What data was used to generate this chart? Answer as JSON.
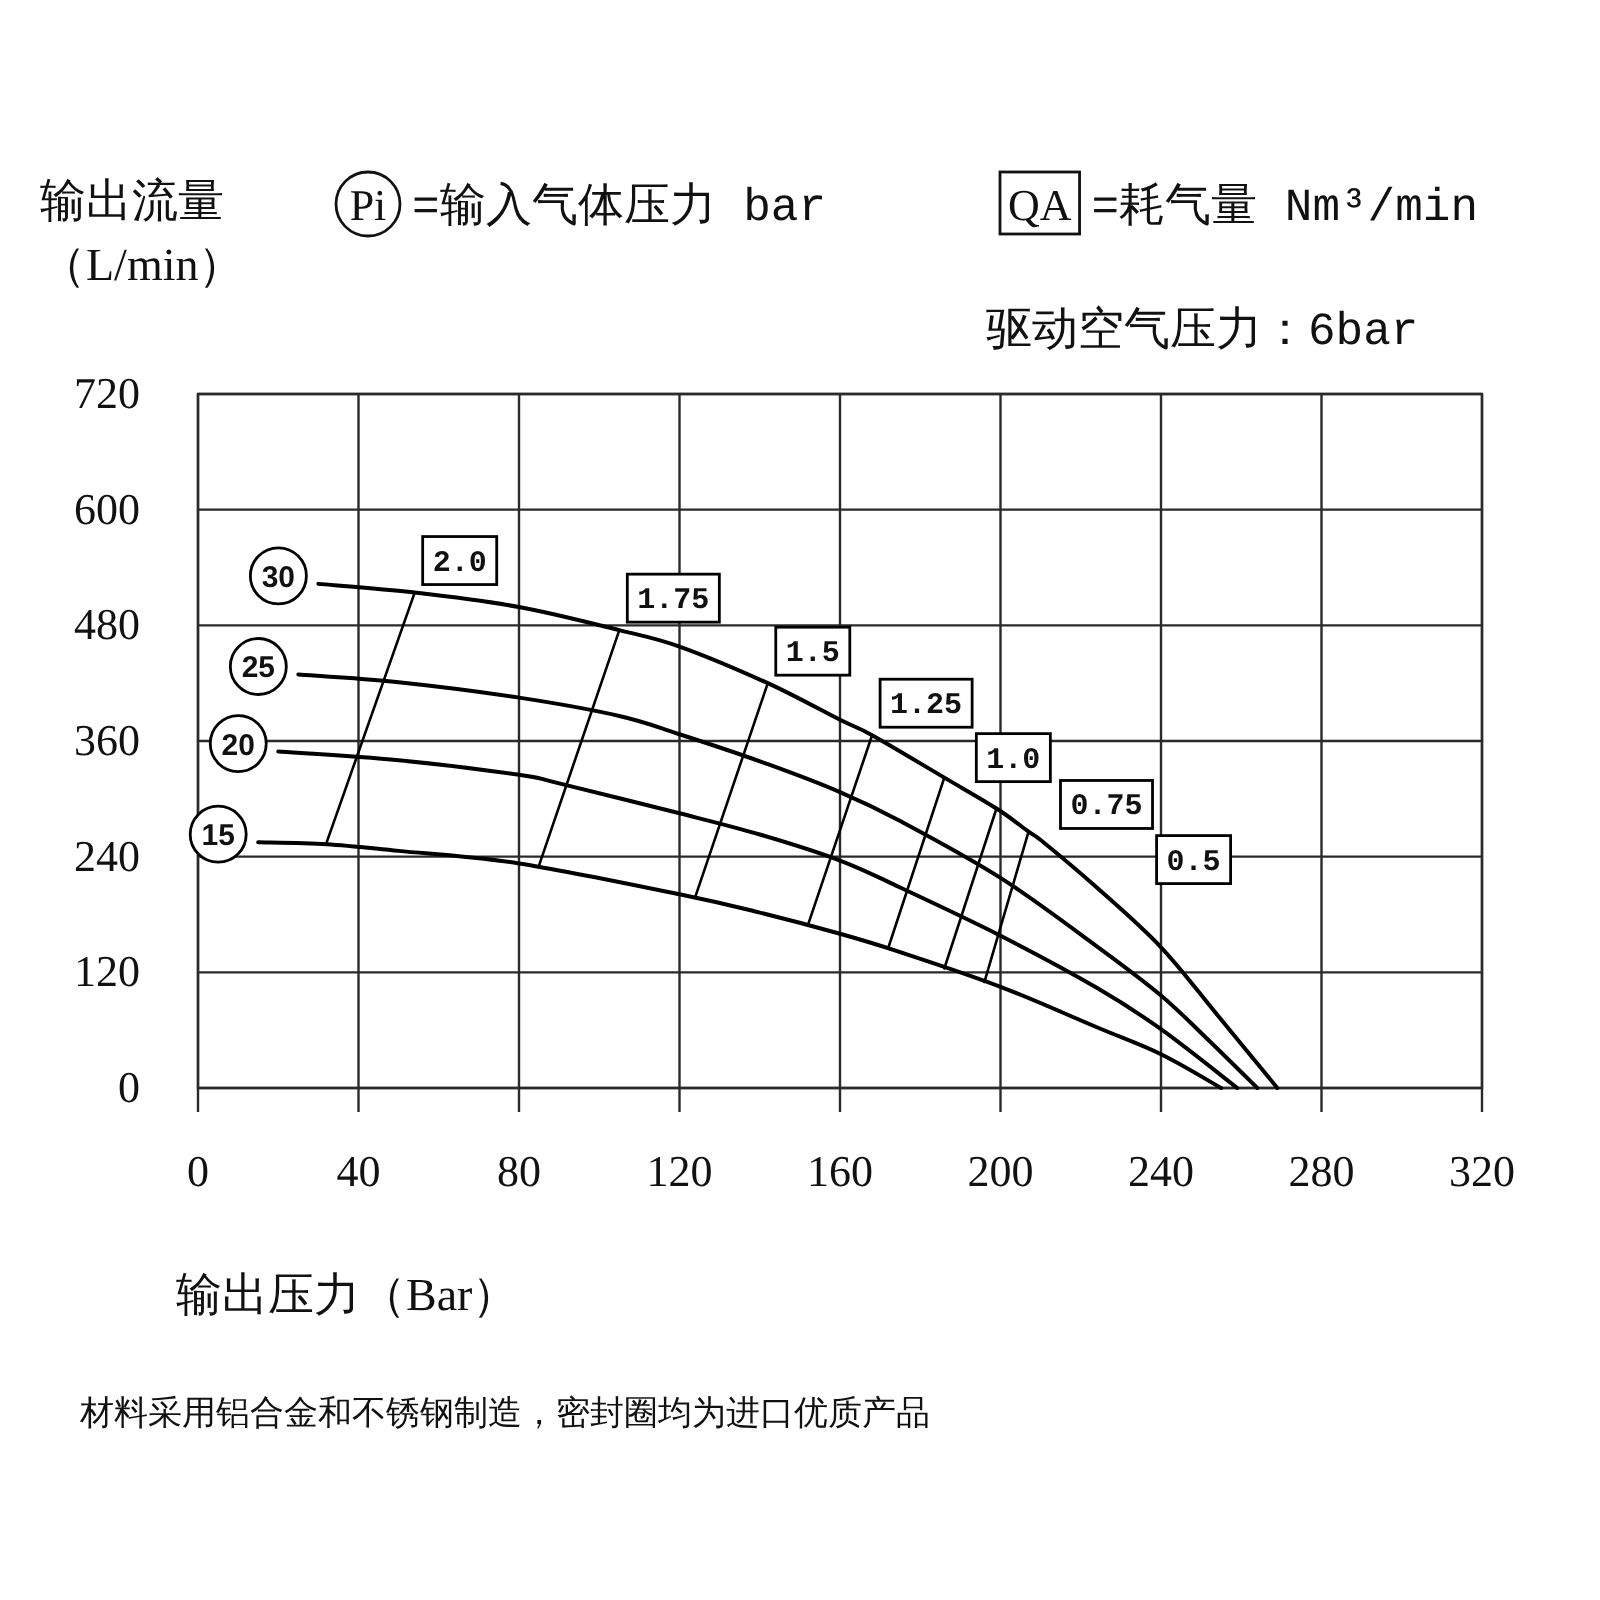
{
  "chart_data": {
    "type": "line",
    "xlabel": "输出压力（Bar）",
    "ylabel": "输出流量（L/min）",
    "annotations": [
      "Pi =输入气体压力 bar",
      "QA =耗气量 Nm³/min",
      "驱动空气压力：6bar",
      "材料采用铝合金和不锈钢制造，密封圈均为进口优质产品"
    ],
    "xlim": [
      0,
      320
    ],
    "ylim": [
      0,
      720
    ],
    "xticks": [
      0,
      40,
      80,
      120,
      160,
      200,
      240,
      280,
      320
    ],
    "yticks": [
      0,
      120,
      240,
      360,
      480,
      600,
      720
    ],
    "grid": true,
    "series": [
      {
        "name": "30",
        "color": "#000000",
        "x": [
          30,
          54,
          80,
          105,
          120,
          142,
          160,
          168,
          186,
          199,
          207,
          211,
          224,
          240,
          254,
          269
        ],
        "values": [
          523,
          514,
          499,
          475,
          458,
          420,
          382,
          366,
          322,
          290,
          266,
          254,
          208,
          146,
          76,
          0
        ]
      },
      {
        "name": "25",
        "color": "#000000",
        "x": [
          25,
          50,
          80,
          105,
          120,
          142,
          160,
          175,
          200,
          224,
          240,
          252,
          264
        ],
        "values": [
          429,
          421,
          405,
          386,
          367,
          336,
          307,
          277,
          218,
          147,
          96,
          49,
          0
        ]
      },
      {
        "name": "20",
        "color": "#000000",
        "x": [
          20,
          50,
          80,
          90,
          120,
          140,
          160,
          175,
          200,
          224,
          240,
          259
        ],
        "values": [
          349,
          340,
          325,
          316,
          285,
          263,
          236,
          208,
          158,
          104,
          61,
          0
        ]
      },
      {
        "name": "15",
        "color": "#000000",
        "x": [
          15,
          32,
          50,
          80,
          120,
          140,
          160,
          175,
          200,
          224,
          240,
          255
        ],
        "values": [
          255,
          253,
          246,
          233,
          201,
          182,
          160,
          141,
          105,
          63,
          35,
          0
        ]
      },
      {
        "name": "2.0",
        "color": "#000000",
        "x": [
          32,
          54
        ],
        "values": [
          254,
          514
        ]
      },
      {
        "name": "1.75",
        "color": "#000000",
        "x": [
          85,
          105
        ],
        "values": [
          231,
          475
        ]
      },
      {
        "name": "1.5",
        "color": "#000000",
        "x": [
          124,
          142
        ],
        "values": [
          199,
          420
        ]
      },
      {
        "name": "1.25",
        "color": "#000000",
        "x": [
          152,
          168
        ],
        "values": [
          169,
          366
        ]
      },
      {
        "name": "1.0",
        "color": "#000000",
        "x": [
          172,
          186
        ],
        "values": [
          145,
          322
        ]
      },
      {
        "name": "0.75",
        "color": "#000000",
        "x": [
          186,
          199
        ],
        "values": [
          124,
          290
        ]
      },
      {
        "name": "0.5",
        "color": "#000000",
        "x": [
          196,
          207
        ],
        "values": [
          110,
          266
        ]
      }
    ]
  }
}
